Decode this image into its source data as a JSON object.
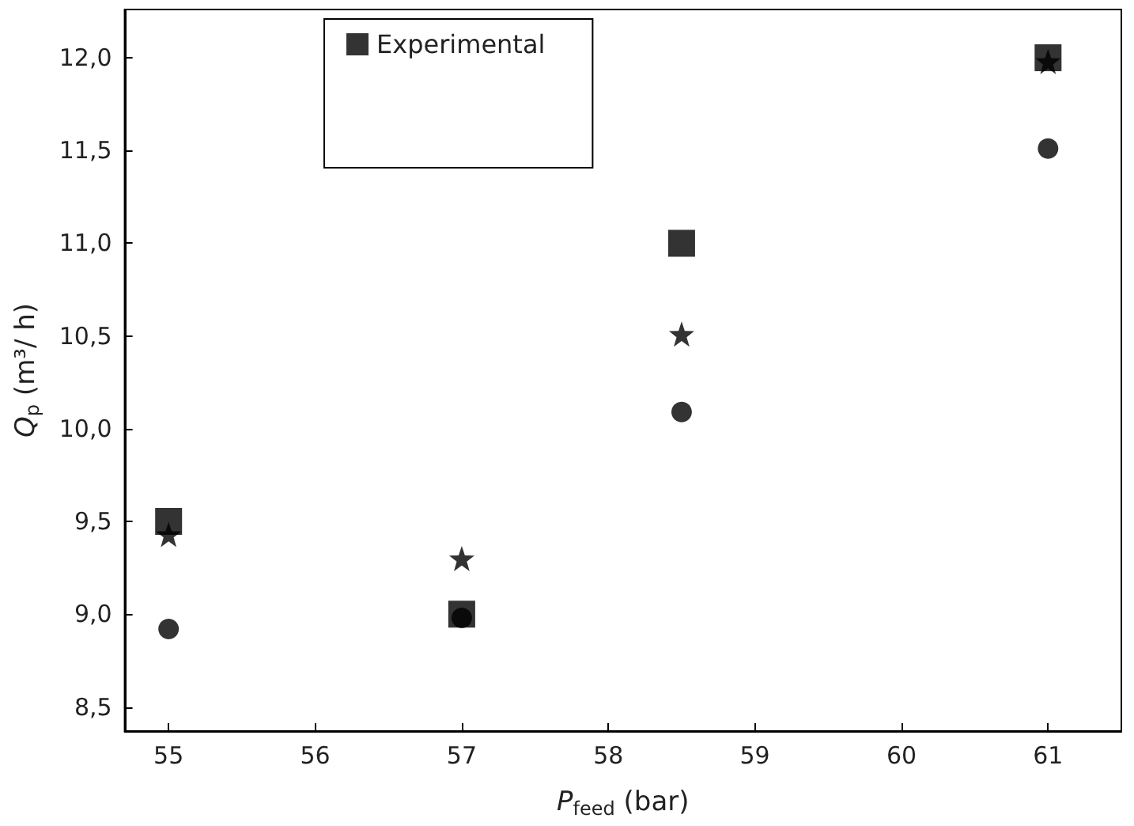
{
  "chart_data": {
    "type": "scatter",
    "xlabel": "P$_{feed}$ (bar)",
    "ylabel": "Q$_{p}$ (m³/ h)",
    "x": [
      55,
      57,
      58.5,
      61
    ],
    "series": [
      {
        "name": "Experimental",
        "color": "#000000",
        "marker": "square",
        "values": [
          9.5,
          9.0,
          11.0,
          12.0
        ]
      },
      {
        "color": "#000000",
        "marker": "circle",
        "values": [
          8.92,
          8.98,
          10.09,
          11.51
        ]
      },
      {
        "color": "#000000",
        "marker": "star",
        "values": [
          9.43,
          9.3,
          10.51,
          11.98
        ]
      }
    ],
    "xlim": [
      54.7,
      61.5
    ],
    "xticks": [
      55,
      56,
      57,
      58,
      59,
      60,
      61
    ],
    "ylim": [
      8.37,
      12.26
    ],
    "yticks": [
      {
        "value": 8.5,
        "label": "8,5"
      },
      {
        "value": 9.0,
        "label": "9,0"
      },
      {
        "value": 9.5,
        "label": "9,5"
      },
      {
        "value": 10.0,
        "label": "10,0"
      },
      {
        "value": 10.5,
        "label": "10,5"
      },
      {
        "value": 11.0,
        "label": "11,0"
      },
      {
        "value": 11.5,
        "label": "11,5"
      },
      {
        "value": 12.0,
        "label": "12,0"
      }
    ],
    "grid": false,
    "legend": "top"
  }
}
